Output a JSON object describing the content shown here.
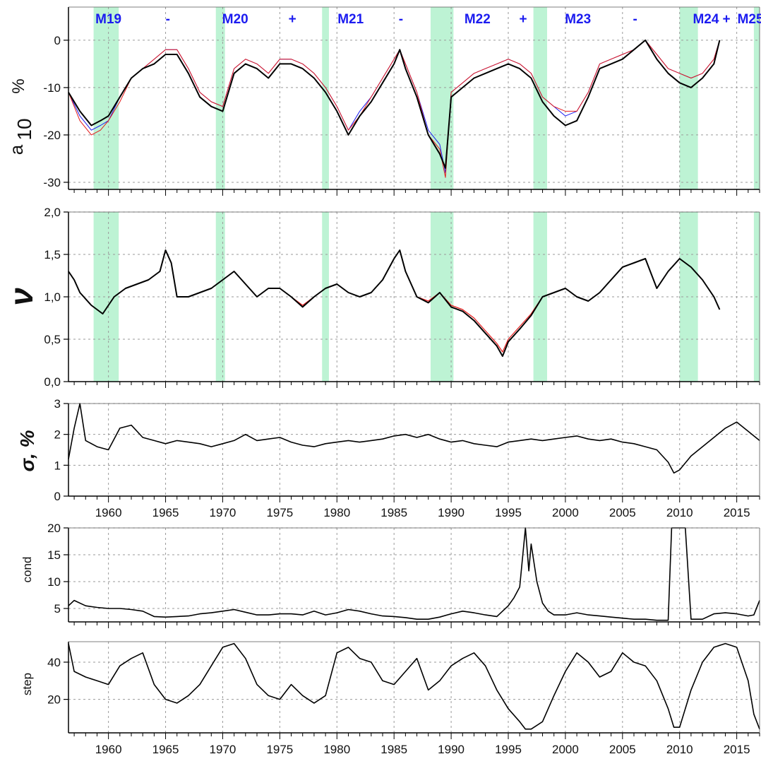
{
  "colors": {
    "background": "#ffffff",
    "band": "#bdf3d4",
    "main_line": "#000000",
    "red_line": "#e41a1a",
    "blue_line": "#1c1cf0",
    "grid": "#9a9a9a",
    "epoch_text": "#1c1cf0"
  },
  "x_axis": {
    "min": 1956.5,
    "max": 2017.0,
    "tick_labels": [
      "1960",
      "1965",
      "1970",
      "1975",
      "1980",
      "1985",
      "1990",
      "1995",
      "2000",
      "2005",
      "2010",
      "2015"
    ],
    "tick_values": [
      1960,
      1965,
      1970,
      1975,
      1980,
      1985,
      1990,
      1995,
      2000,
      2005,
      2010,
      2015
    ],
    "minor_step": 1
  },
  "bands": [
    [
      1958.7,
      1960.9
    ],
    [
      1969.4,
      1970.2
    ],
    [
      1978.7,
      1979.3
    ],
    [
      1988.2,
      1990.2
    ],
    [
      1997.2,
      1998.4
    ],
    [
      2010.0,
      2011.6
    ],
    [
      2016.5,
      2017.0
    ]
  ],
  "epochs": [
    {
      "label": "M19",
      "x": 1960.0
    },
    {
      "label": "-",
      "x": 1965.2
    },
    {
      "label": "M20",
      "x": 1971.1
    },
    {
      "label": "+",
      "x": 1976.1
    },
    {
      "label": "M21",
      "x": 1981.2
    },
    {
      "label": "-",
      "x": 1985.6
    },
    {
      "label": "M22",
      "x": 1992.3
    },
    {
      "label": "+",
      "x": 1996.3
    },
    {
      "label": "M23",
      "x": 2001.1
    },
    {
      "label": "-",
      "x": 2006.1
    },
    {
      "label": "M24",
      "x": 2012.3
    },
    {
      "label": "+",
      "x": 2014.1
    },
    {
      "label": "M25",
      "x": 2016.2
    }
  ],
  "chart_data": [
    {
      "type": "line",
      "panel": "a10",
      "ylabel_main": "a",
      "ylabel_sub": "10",
      "ylabel_unit": "%",
      "ylim": [
        -31.5,
        7
      ],
      "yticks": [
        0,
        -10,
        -20,
        -30
      ],
      "ytick_labels": [
        "0",
        "-10",
        "-20",
        "-30"
      ],
      "grid": true,
      "show_epochs": true,
      "x": [
        1956.5,
        1957.5,
        1958.5,
        1959.3,
        1960.0,
        1961.0,
        1962.0,
        1963.0,
        1964.0,
        1965.0,
        1966.0,
        1967.0,
        1968.0,
        1969.0,
        1970.0,
        1971.0,
        1972.0,
        1973.0,
        1974.0,
        1975.0,
        1976.0,
        1977.0,
        1978.0,
        1979.0,
        1980.0,
        1981.0,
        1982.0,
        1983.0,
        1984.0,
        1985.0,
        1985.5,
        1986.0,
        1987.0,
        1988.0,
        1989.0,
        1989.5,
        1990.0,
        1991.0,
        1992.0,
        1993.0,
        1994.0,
        1995.0,
        1996.0,
        1997.0,
        1998.0,
        1999.0,
        2000.0,
        2001.0,
        2002.0,
        2003.0,
        2004.0,
        2005.0,
        2006.0,
        2007.0,
        2008.0,
        2009.0,
        2010.0,
        2011.0,
        2012.0,
        2013.0,
        2013.5
      ],
      "series": [
        {
          "values": [
            -11,
            -16,
            -19,
            -18,
            -17,
            -12,
            -8,
            -6,
            -4,
            -2,
            -2,
            -6,
            -11,
            -13,
            -14,
            -6,
            -4,
            -5,
            -7,
            -4,
            -4,
            -5,
            -7,
            -10,
            -14,
            -19,
            -15,
            -12,
            -8,
            -4,
            -2,
            -5,
            -11,
            -19,
            -22,
            -28,
            -11,
            -9,
            -7,
            -6,
            -5,
            -4,
            -5,
            -7,
            -12,
            -14,
            -16,
            -15,
            -11,
            -5,
            -4,
            -3,
            -2,
            0,
            -3,
            -6,
            -7,
            -8,
            -7,
            -4,
            0
          ]
        },
        {
          "values": [
            -11,
            -17,
            -20,
            -19,
            -17,
            -13,
            -8,
            -6,
            -4,
            -2,
            -2,
            -6,
            -11,
            -13,
            -14,
            -6,
            -4,
            -5,
            -7,
            -4,
            -4,
            -5,
            -7,
            -10,
            -14,
            -19,
            -16,
            -12,
            -8,
            -4,
            -2,
            -5,
            -11,
            -20,
            -23,
            -29,
            -11,
            -9,
            -7,
            -6,
            -5,
            -4,
            -5,
            -7,
            -12,
            -14,
            -15,
            -15,
            -11,
            -5,
            -4,
            -3,
            -2,
            0,
            -3,
            -6,
            -7,
            -8,
            -7,
            -4,
            0
          ]
        },
        {
          "values": [
            -11,
            -15,
            -18,
            -17,
            -16,
            -12,
            -8,
            -6,
            -5,
            -3,
            -3,
            -7,
            -12,
            -14,
            -15,
            -7,
            -5,
            -6,
            -8,
            -5,
            -5,
            -6,
            -8,
            -11,
            -15,
            -20,
            -16,
            -13,
            -9,
            -5,
            -2,
            -6,
            -12,
            -20,
            -24,
            -27,
            -12,
            -10,
            -8,
            -7,
            -6,
            -5,
            -6,
            -8,
            -13,
            -16,
            -18,
            -17,
            -12,
            -6,
            -5,
            -4,
            -2,
            0,
            -4,
            -7,
            -9,
            -10,
            -8,
            -5,
            0
          ]
        }
      ]
    },
    {
      "type": "line",
      "panel": "nu",
      "ylabel_main": "ν",
      "ylim": [
        0,
        2
      ],
      "yticks": [
        0,
        0.5,
        1.0,
        1.5,
        2.0
      ],
      "ytick_labels": [
        "0,0",
        "0,5",
        "1,0",
        "1,5",
        "2,0"
      ],
      "grid": true,
      "x": [
        1956.5,
        1957.0,
        1957.5,
        1958.5,
        1959.5,
        1960.5,
        1961.5,
        1962.5,
        1963.5,
        1964.5,
        1965.0,
        1965.5,
        1966.0,
        1967.0,
        1968.0,
        1969.0,
        1970.0,
        1971.0,
        1972.0,
        1973.0,
        1974.0,
        1975.0,
        1976.0,
        1977.0,
        1978.0,
        1979.0,
        1980.0,
        1981.0,
        1982.0,
        1983.0,
        1984.0,
        1985.0,
        1985.5,
        1986.0,
        1987.0,
        1988.0,
        1989.0,
        1990.0,
        1991.0,
        1992.0,
        1993.0,
        1994.0,
        1994.5,
        1995.0,
        1996.0,
        1997.0,
        1998.0,
        1999.0,
        2000.0,
        2001.0,
        2002.0,
        2003.0,
        2004.0,
        2005.0,
        2006.0,
        2007.0,
        2008.0,
        2009.0,
        2010.0,
        2011.0,
        2012.0,
        2013.0,
        2013.5
      ],
      "series": [
        {
          "values": [
            1.3,
            1.2,
            1.05,
            0.9,
            0.8,
            1.0,
            1.1,
            1.15,
            1.2,
            1.3,
            1.55,
            1.4,
            1.0,
            1.0,
            1.05,
            1.1,
            1.2,
            1.3,
            1.15,
            1.0,
            1.1,
            1.1,
            1.0,
            0.9,
            1.0,
            1.1,
            1.15,
            1.05,
            1.0,
            1.05,
            1.2,
            1.45,
            1.55,
            1.3,
            1.0,
            0.95,
            1.05,
            0.9,
            0.85,
            0.75,
            0.6,
            0.45,
            0.35,
            0.5,
            0.65,
            0.8,
            1.0,
            1.05,
            1.1,
            1.0,
            0.95,
            1.05,
            1.2,
            1.35,
            1.4,
            1.45,
            1.1,
            1.3,
            1.45,
            1.35,
            1.2,
            1.0,
            0.85
          ]
        },
        {
          "values": [
            1.3,
            1.2,
            1.05,
            0.9,
            0.8,
            1.0,
            1.1,
            1.15,
            1.2,
            1.3,
            1.55,
            1.4,
            1.0,
            1.0,
            1.05,
            1.1,
            1.2,
            1.3,
            1.15,
            1.0,
            1.1,
            1.1,
            1.0,
            0.88,
            1.0,
            1.1,
            1.15,
            1.05,
            1.0,
            1.05,
            1.2,
            1.45,
            1.55,
            1.3,
            1.0,
            0.93,
            1.05,
            0.88,
            0.83,
            0.72,
            0.57,
            0.42,
            0.3,
            0.47,
            0.62,
            0.78,
            1.0,
            1.05,
            1.1,
            1.0,
            0.95,
            1.05,
            1.2,
            1.35,
            1.4,
            1.45,
            1.1,
            1.3,
            1.45,
            1.35,
            1.2,
            1.0,
            0.85
          ]
        }
      ]
    },
    {
      "type": "line",
      "panel": "sigma",
      "ylabel_main": "σ, %",
      "ylim": [
        0,
        3
      ],
      "yticks": [
        0,
        1,
        2,
        3
      ],
      "ytick_labels": [
        "0",
        "1",
        "2",
        "3"
      ],
      "grid": true,
      "x_tick_labels_below": true,
      "x": [
        1956.5,
        1957.0,
        1957.5,
        1958.0,
        1959.0,
        1960.0,
        1961.0,
        1962.0,
        1963.0,
        1964.0,
        1965.0,
        1966.0,
        1967.0,
        1968.0,
        1969.0,
        1970.0,
        1971.0,
        1972.0,
        1973.0,
        1974.0,
        1975.0,
        1976.0,
        1977.0,
        1978.0,
        1979.0,
        1980.0,
        1981.0,
        1982.0,
        1983.0,
        1984.0,
        1985.0,
        1986.0,
        1987.0,
        1988.0,
        1989.0,
        1990.0,
        1991.0,
        1992.0,
        1993.0,
        1994.0,
        1995.0,
        1996.0,
        1997.0,
        1998.0,
        1999.0,
        2000.0,
        2001.0,
        2002.0,
        2003.0,
        2004.0,
        2005.0,
        2006.0,
        2007.0,
        2008.0,
        2009.0,
        2009.5,
        2010.0,
        2011.0,
        2012.0,
        2013.0,
        2014.0,
        2015.0,
        2016.0,
        2017.0
      ],
      "series": [
        {
          "values": [
            1.2,
            2.2,
            3.0,
            1.8,
            1.6,
            1.5,
            2.2,
            2.3,
            1.9,
            1.8,
            1.7,
            1.8,
            1.75,
            1.7,
            1.6,
            1.7,
            1.8,
            2.0,
            1.8,
            1.85,
            1.9,
            1.75,
            1.65,
            1.6,
            1.7,
            1.75,
            1.8,
            1.75,
            1.8,
            1.85,
            1.95,
            2.0,
            1.9,
            2.0,
            1.85,
            1.75,
            1.8,
            1.7,
            1.65,
            1.6,
            1.75,
            1.8,
            1.85,
            1.8,
            1.85,
            1.9,
            1.95,
            1.85,
            1.8,
            1.85,
            1.75,
            1.7,
            1.6,
            1.5,
            1.1,
            0.75,
            0.85,
            1.3,
            1.6,
            1.9,
            2.2,
            2.4,
            2.1,
            1.8
          ]
        }
      ]
    },
    {
      "type": "line",
      "panel": "cond",
      "ylabel_main": "cond",
      "ylim": [
        2.5,
        20
      ],
      "yticks": [
        5,
        10,
        15,
        20
      ],
      "ytick_labels": [
        "5",
        "10",
        "15",
        "20"
      ],
      "grid": true,
      "x": [
        1956.5,
        1957.0,
        1958.0,
        1959.0,
        1960.0,
        1961.0,
        1962.0,
        1963.0,
        1964.0,
        1965.0,
        1966.0,
        1967.0,
        1968.0,
        1969.0,
        1970.0,
        1971.0,
        1972.0,
        1973.0,
        1974.0,
        1975.0,
        1976.0,
        1977.0,
        1978.0,
        1979.0,
        1980.0,
        1981.0,
        1982.0,
        1983.0,
        1984.0,
        1985.0,
        1986.0,
        1987.0,
        1988.0,
        1989.0,
        1990.0,
        1991.0,
        1992.0,
        1993.0,
        1994.0,
        1995.0,
        1995.5,
        1996.0,
        1996.5,
        1996.8,
        1997.0,
        1997.5,
        1998.0,
        1998.5,
        1999.0,
        2000.0,
        2001.0,
        2002.0,
        2003.0,
        2004.0,
        2005.0,
        2006.0,
        2007.0,
        2008.0,
        2009.0,
        2009.3,
        2009.6,
        2010.0,
        2010.5,
        2011.0,
        2012.0,
        2013.0,
        2014.0,
        2015.0,
        2016.0,
        2016.5,
        2017.0
      ],
      "series": [
        {
          "values": [
            5.5,
            6.5,
            5.5,
            5.2,
            5.0,
            5.0,
            4.8,
            4.5,
            3.5,
            3.4,
            3.5,
            3.6,
            4.0,
            4.2,
            4.5,
            4.8,
            4.3,
            3.8,
            3.8,
            4.0,
            4.0,
            3.8,
            4.5,
            3.8,
            4.2,
            4.8,
            4.5,
            4.0,
            3.6,
            3.5,
            3.3,
            3.0,
            3.0,
            3.4,
            4.0,
            4.5,
            4.2,
            3.8,
            3.5,
            5.5,
            7.0,
            9.0,
            20.0,
            12.0,
            17.0,
            10.0,
            6.0,
            4.5,
            3.8,
            3.8,
            4.2,
            3.8,
            3.6,
            3.4,
            3.2,
            3.0,
            3.0,
            2.8,
            2.8,
            20.0,
            20.0,
            20.0,
            20.0,
            3.0,
            3.0,
            4.0,
            4.2,
            4.0,
            3.6,
            3.8,
            6.5
          ]
        }
      ]
    },
    {
      "type": "line",
      "panel": "step",
      "ylabel_main": "step",
      "ylim": [
        2,
        51
      ],
      "yticks": [
        20,
        40
      ],
      "ytick_labels": [
        "20",
        "40"
      ],
      "grid": true,
      "x_tick_labels_below": true,
      "x": [
        1956.5,
        1957.0,
        1958.0,
        1959.0,
        1960.0,
        1961.0,
        1962.0,
        1963.0,
        1964.0,
        1965.0,
        1966.0,
        1967.0,
        1968.0,
        1969.0,
        1970.0,
        1971.0,
        1972.0,
        1973.0,
        1974.0,
        1975.0,
        1976.0,
        1977.0,
        1978.0,
        1979.0,
        1980.0,
        1981.0,
        1982.0,
        1983.0,
        1984.0,
        1985.0,
        1986.0,
        1987.0,
        1988.0,
        1989.0,
        1990.0,
        1991.0,
        1992.0,
        1993.0,
        1994.0,
        1995.0,
        1996.0,
        1996.5,
        1997.0,
        1998.0,
        1999.0,
        2000.0,
        2001.0,
        2002.0,
        2003.0,
        2004.0,
        2005.0,
        2006.0,
        2007.0,
        2008.0,
        2009.0,
        2009.5,
        2010.0,
        2011.0,
        2012.0,
        2013.0,
        2014.0,
        2015.0,
        2016.0,
        2016.5,
        2017.0
      ],
      "series": [
        {
          "values": [
            50,
            35,
            32,
            30,
            28,
            38,
            42,
            45,
            28,
            20,
            18,
            22,
            28,
            38,
            48,
            50,
            42,
            28,
            22,
            20,
            28,
            22,
            18,
            22,
            45,
            48,
            42,
            40,
            30,
            28,
            35,
            42,
            25,
            30,
            38,
            42,
            45,
            38,
            25,
            15,
            8,
            4,
            4,
            8,
            22,
            35,
            45,
            40,
            32,
            35,
            45,
            40,
            38,
            30,
            15,
            5,
            5,
            25,
            40,
            48,
            50,
            48,
            30,
            12,
            4
          ]
        }
      ]
    }
  ]
}
